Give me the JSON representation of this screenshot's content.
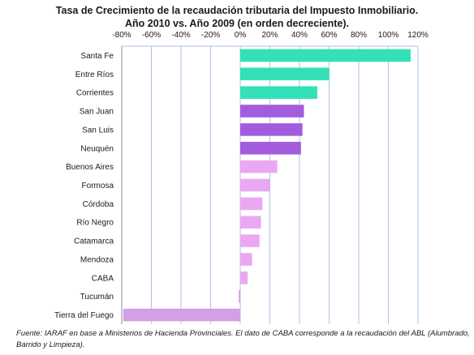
{
  "chart_data": {
    "type": "bar",
    "orientation": "horizontal",
    "title": "Tasa de Crecimiento de la recaudación tributaria del Impuesto Inmobiliario.",
    "subtitle": "Año 2010 vs. Año 2009 (en orden decreciente).",
    "xlabel": "",
    "ylabel": "",
    "xlim": [
      -80,
      120
    ],
    "ticks": [
      "-80%",
      "-60%",
      "-40%",
      "-20%",
      "0%",
      "20%",
      "40%",
      "60%",
      "80%",
      "100%",
      "120%"
    ],
    "tick_values": [
      -80,
      -60,
      -40,
      -20,
      0,
      20,
      40,
      60,
      80,
      100,
      120
    ],
    "grid": "vertical",
    "categories": [
      "Santa Fe",
      "Entre Ríos",
      "Corrientes",
      "San Juan",
      "San Luis",
      "Neuquén",
      "Buenos Aires",
      "Formosa",
      "Córdoba",
      "Río Negro",
      "Catamarca",
      "Mendoza",
      "CABA",
      "Tucumán",
      "Tierra del Fuego"
    ],
    "values": [
      115,
      60,
      52,
      43,
      42,
      41,
      25,
      20,
      15,
      14,
      13,
      8,
      5,
      -1,
      -79
    ],
    "colors": [
      "#33e0b8",
      "#33e0b8",
      "#33e0b8",
      "#a35cde",
      "#a35cde",
      "#a35cde",
      "#eba8f2",
      "#eba8f2",
      "#eba8f2",
      "#eba8f2",
      "#eba8f2",
      "#eba8f2",
      "#eba8f2",
      "#d39fe6",
      "#d39fe6"
    ]
  },
  "source": "Fuente: IARAF en base a Ministerios de Hacienda Provinciales. El dato de CABA corresponde a la recaudación del ABL (Alumbrado, Barrido y Limpieza)."
}
